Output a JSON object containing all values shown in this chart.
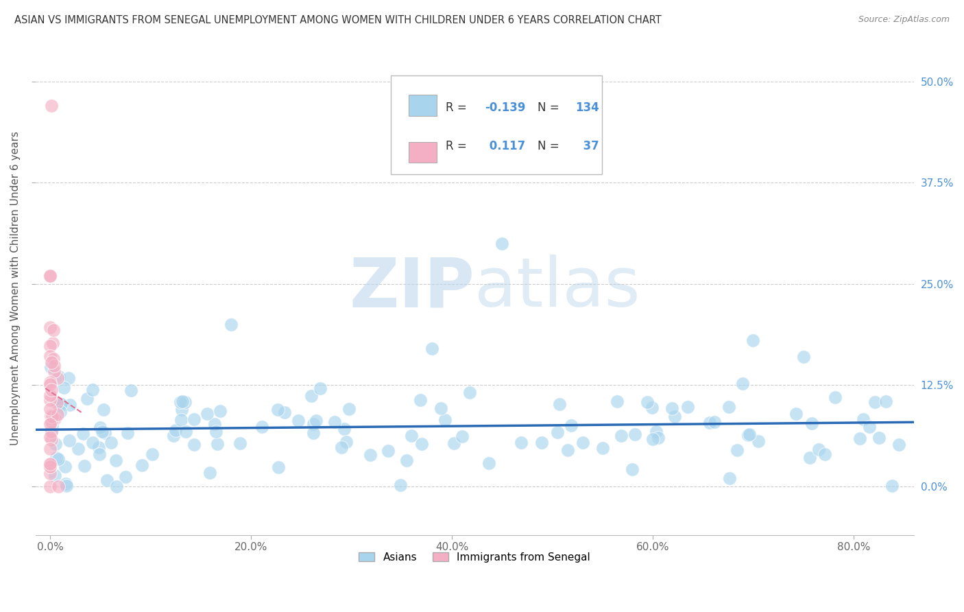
{
  "title": "ASIAN VS IMMIGRANTS FROM SENEGAL UNEMPLOYMENT AMONG WOMEN WITH CHILDREN UNDER 6 YEARS CORRELATION CHART",
  "source": "Source: ZipAtlas.com",
  "ylabel": "Unemployment Among Women with Children Under 6 years",
  "R_asian": -0.139,
  "N_asian": 134,
  "R_senegal": 0.117,
  "N_senegal": 37,
  "color_asian": "#a8d4ed",
  "color_senegal": "#f4afc4",
  "trendline_color_asian": "#2a6ab5",
  "trendline_color_senegal": "#e07090",
  "background_color": "#ffffff",
  "grid_color": "#cccccc",
  "watermark_zip": "ZIP",
  "watermark_atlas": "atlas",
  "x_ticks": [
    0.0,
    0.2,
    0.4,
    0.6,
    0.8
  ],
  "x_tick_labels": [
    "0.0%",
    "20.0%",
    "40.0%",
    "60.0%",
    "80.0%"
  ],
  "y_ticks": [
    0.0,
    0.125,
    0.25,
    0.375,
    0.5
  ],
  "y_tick_labels": [
    "0.0%",
    "12.5%",
    "25.0%",
    "37.5%",
    "50.0%"
  ],
  "xlim": [
    -0.015,
    0.86
  ],
  "ylim": [
    -0.06,
    0.55
  ]
}
